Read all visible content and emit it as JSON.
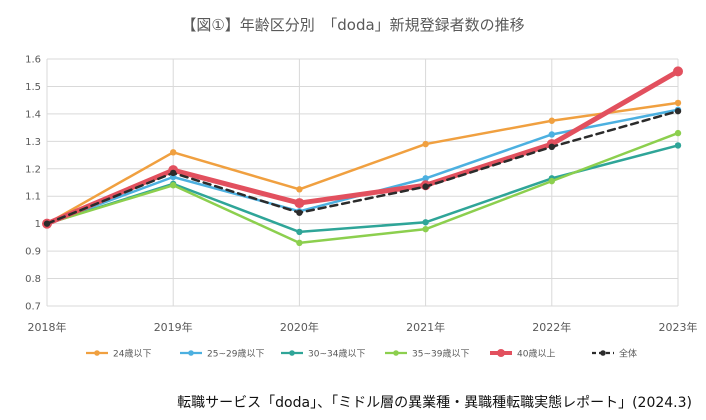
{
  "chart_data": {
    "type": "line",
    "title": "【図①】年齢区分別　「doda」新規登録者数の推移",
    "xlabel": "",
    "ylabel": "",
    "categories": [
      "2018年",
      "2019年",
      "2020年",
      "2021年",
      "2022年",
      "2023年"
    ],
    "ylim": [
      0.7,
      1.6
    ],
    "yticks": [
      "0.7",
      "0.8",
      "0.9",
      "1",
      "1.1",
      "1.2",
      "1.3",
      "1.4",
      "1.5",
      "1.6"
    ],
    "grid": true,
    "legend_position": "bottom",
    "series": [
      {
        "name": "24歳以下",
        "color": "#f0a040",
        "style": "solid",
        "emphasis": false,
        "values": [
          1.0,
          1.26,
          1.125,
          1.29,
          1.375,
          1.44
        ]
      },
      {
        "name": "25~29歳以下",
        "color": "#4cb0e0",
        "style": "solid",
        "emphasis": false,
        "values": [
          1.0,
          1.17,
          1.045,
          1.165,
          1.325,
          1.415
        ]
      },
      {
        "name": "30~34歳以下",
        "color": "#2fa598",
        "style": "solid",
        "emphasis": false,
        "values": [
          1.0,
          1.145,
          0.97,
          1.005,
          1.165,
          1.285
        ]
      },
      {
        "name": "35~39歳以下",
        "color": "#8ccf4e",
        "style": "solid",
        "emphasis": false,
        "values": [
          1.0,
          1.14,
          0.93,
          0.98,
          1.155,
          1.33
        ]
      },
      {
        "name": "40歳以上",
        "color": "#e2505e",
        "style": "solid",
        "emphasis": true,
        "values": [
          1.0,
          1.195,
          1.075,
          1.14,
          1.29,
          1.555
        ]
      },
      {
        "name": "全体",
        "color": "#2b2b2b",
        "style": "dashed",
        "emphasis": false,
        "values": [
          1.0,
          1.185,
          1.04,
          1.135,
          1.28,
          1.41
        ]
      }
    ]
  },
  "footer": {
    "caption": "転職サービス「doda」、「ミドル層の異業種・異職種転職実態レポート」(2024.3)"
  }
}
